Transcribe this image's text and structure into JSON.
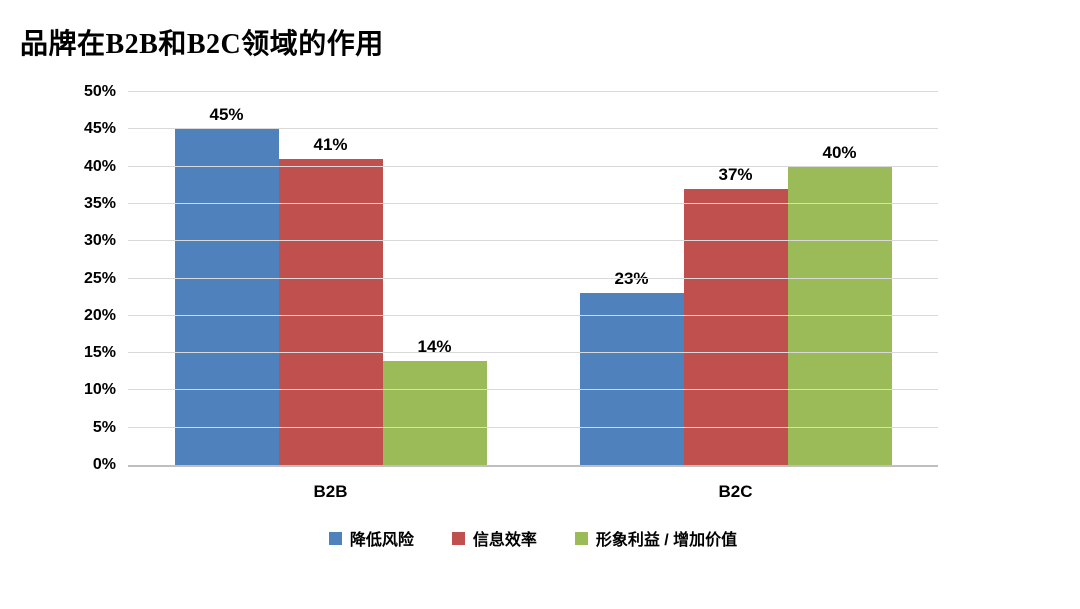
{
  "chart_data": {
    "type": "bar",
    "title": "品牌在B2B和B2C领域的作用",
    "categories": [
      "B2B",
      "B2C"
    ],
    "series": [
      {
        "name": "降低风险",
        "color": "#4F81BD",
        "values": [
          45,
          23
        ]
      },
      {
        "name": "信息效率",
        "color": "#C0504D",
        "values": [
          41,
          37
        ]
      },
      {
        "name": "形象利益 / 增加价值",
        "color": "#9BBB59",
        "values": [
          14,
          40
        ]
      }
    ],
    "ylim": [
      0,
      50
    ],
    "ytick_step": 5,
    "ytick_suffix": "%",
    "data_label_suffix": "%",
    "grid": true,
    "legend_position": "bottom",
    "colors": {
      "gridline": "#d9d9d9",
      "axis_line": "#bfbfbf",
      "text": "#000000",
      "background": "#ffffff"
    }
  }
}
